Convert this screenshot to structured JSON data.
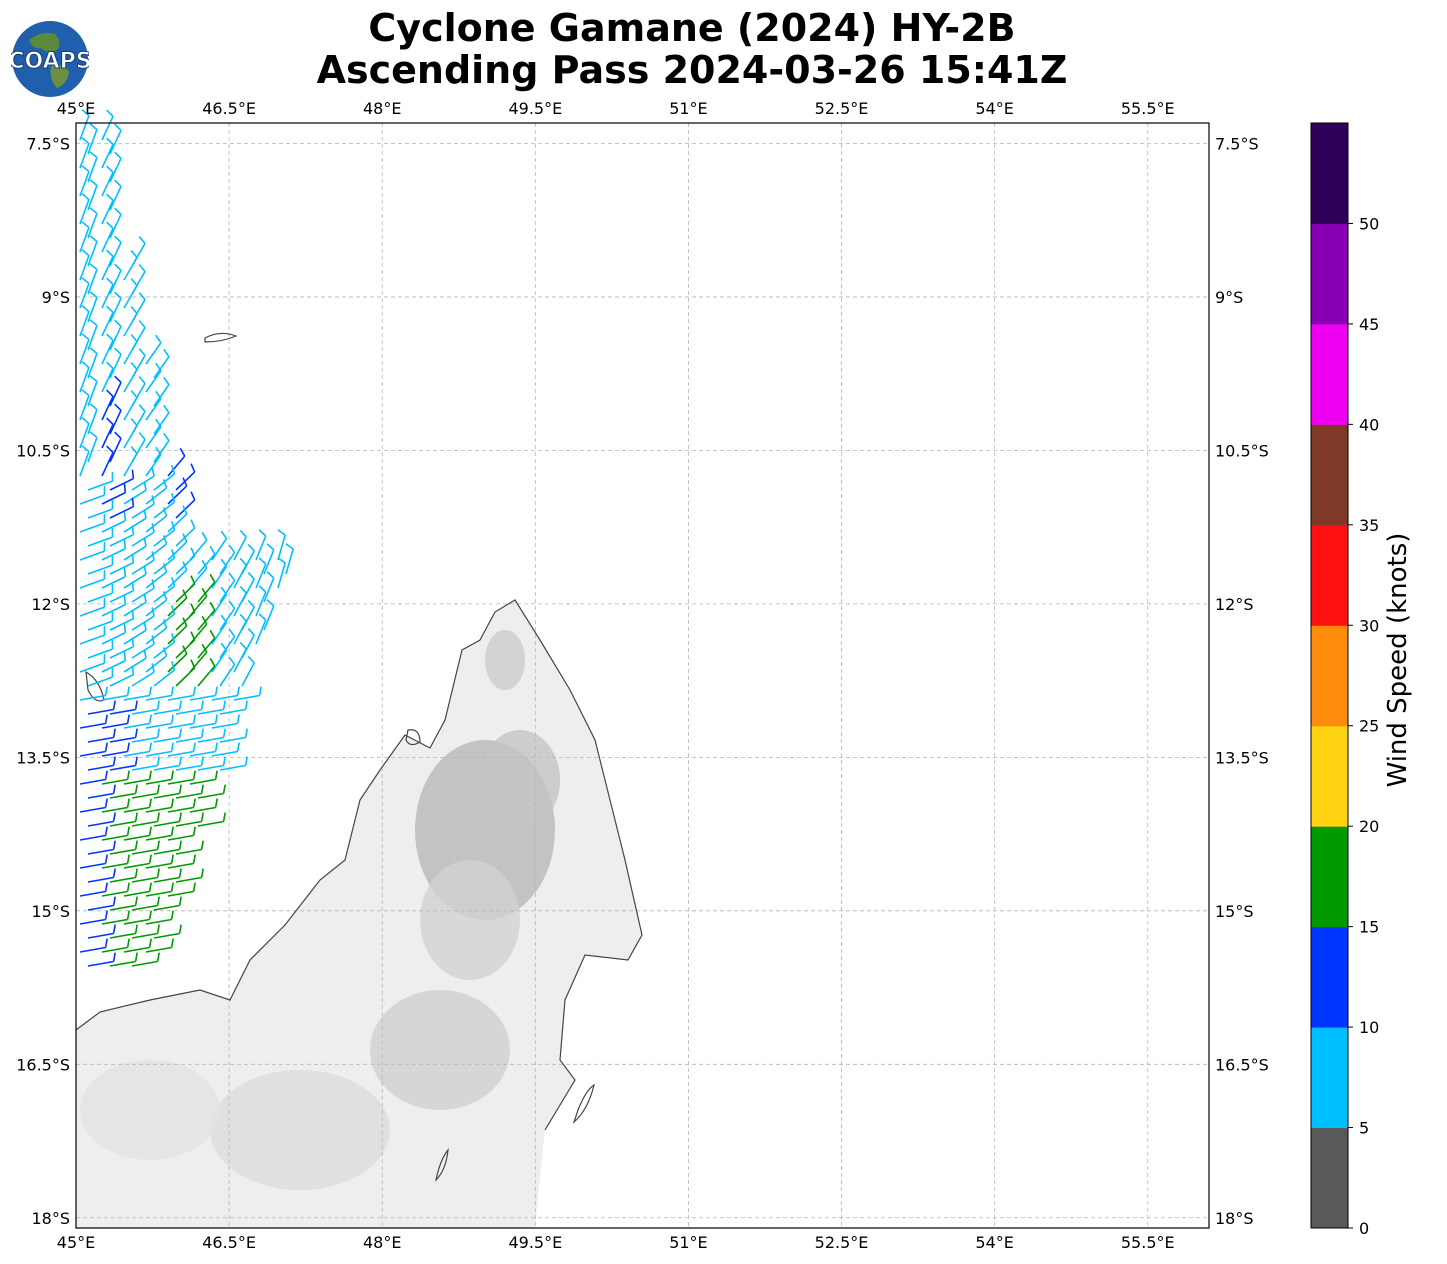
{
  "title": {
    "line1": "Cyclone Gamane (2024) HY-2B",
    "line2": "Ascending Pass 2024-03-26 15:41Z"
  },
  "logo": {
    "text": "COAPS",
    "icon": "globe-logo-icon"
  },
  "map": {
    "lon_range": [
      45,
      56.1
    ],
    "lat_range": [
      -18.1,
      -7.3
    ],
    "lon_ticks": [
      {
        "v": 45,
        "label": "45°E"
      },
      {
        "v": 46.5,
        "label": "46.5°E"
      },
      {
        "v": 48,
        "label": "48°E"
      },
      {
        "v": 49.5,
        "label": "49.5°E"
      },
      {
        "v": 51,
        "label": "51°E"
      },
      {
        "v": 52.5,
        "label": "52.5°E"
      },
      {
        "v": 54,
        "label": "54°E"
      },
      {
        "v": 55.5,
        "label": "55.5°E"
      }
    ],
    "lat_ticks": [
      {
        "v": -7.5,
        "label": "7.5°S"
      },
      {
        "v": -9,
        "label": "9°S"
      },
      {
        "v": -10.5,
        "label": "10.5°S"
      },
      {
        "v": -12,
        "label": "12°S"
      },
      {
        "v": -13.5,
        "label": "13.5°S"
      },
      {
        "v": -15,
        "label": "15°S"
      },
      {
        "v": -16.5,
        "label": "16.5°S"
      },
      {
        "v": -18,
        "label": "18°S"
      }
    ]
  },
  "colorbar": {
    "label": "Wind Speed (knots)",
    "ticks": [
      "0",
      "5",
      "10",
      "15",
      "20",
      "25",
      "30",
      "35",
      "40",
      "45",
      "50"
    ],
    "colors": [
      "#595959",
      "#00bfff",
      "#0036ff",
      "#009a00",
      "#ffd311",
      "#ff8c0a",
      "#ff1111",
      "#7e3a27",
      "#f000f0",
      "#8700b4",
      "#2e0059"
    ]
  }
}
